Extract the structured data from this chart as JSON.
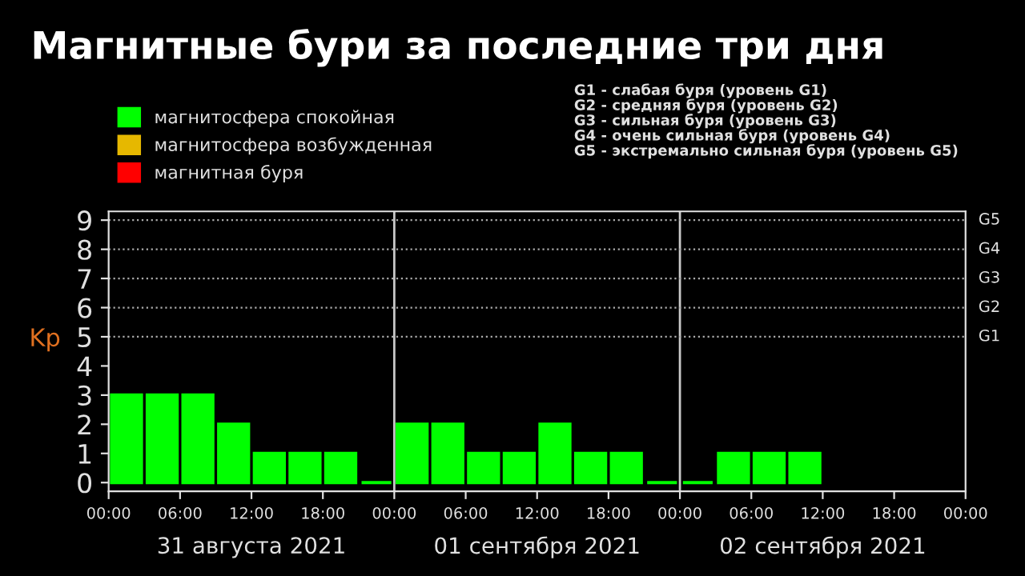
{
  "chart_data": {
    "type": "bar",
    "title": "Магнитные бури за последние три дня",
    "ylabel": "Kp",
    "x": [
      "2021-08-31T01:30",
      "2021-08-31T04:30",
      "2021-08-31T07:30",
      "2021-08-31T10:30",
      "2021-08-31T13:30",
      "2021-08-31T16:30",
      "2021-08-31T19:30",
      "2021-08-31T22:30",
      "2021-09-01T01:30",
      "2021-09-01T04:30",
      "2021-09-01T07:30",
      "2021-09-01T10:30",
      "2021-09-01T13:30",
      "2021-09-01T16:30",
      "2021-09-01T19:30",
      "2021-09-01T22:30",
      "2021-09-02T01:30",
      "2021-09-02T04:30",
      "2021-09-02T07:30",
      "2021-09-02T10:30"
    ],
    "series": [
      {
        "name": "магнитосфера спокойная",
        "color": "#00ff00",
        "values": [
          3,
          3,
          3,
          2,
          1,
          1,
          1,
          0,
          2,
          2,
          1,
          1,
          2,
          1,
          1,
          0,
          0,
          1,
          1,
          1
        ]
      },
      {
        "name": "магнитосфера возбужденная",
        "color": "#e6b800",
        "values": [
          null,
          null,
          null,
          null,
          null,
          null,
          null,
          null,
          null,
          null,
          null,
          null,
          null,
          null,
          null,
          null,
          null,
          null,
          null,
          null
        ]
      },
      {
        "name": "магнитная буря",
        "color": "#ff0000",
        "values": [
          null,
          null,
          null,
          null,
          null,
          null,
          null,
          null,
          null,
          null,
          null,
          null,
          null,
          null,
          null,
          null,
          null,
          null,
          null,
          null
        ]
      }
    ],
    "xlim": [
      "2021-08-31T00:00",
      "2021-09-03T00:00"
    ],
    "xticks": [
      {
        "value": "2021-08-31T00:00",
        "label": "00:00"
      },
      {
        "value": "2021-08-31T06:00",
        "label": "06:00"
      },
      {
        "value": "2021-08-31T12:00",
        "label": "12:00"
      },
      {
        "value": "2021-08-31T18:00",
        "label": "18:00"
      },
      {
        "value": "2021-09-01T00:00",
        "label": "00:00"
      },
      {
        "value": "2021-09-01T06:00",
        "label": "06:00"
      },
      {
        "value": "2021-09-01T12:00",
        "label": "12:00"
      },
      {
        "value": "2021-09-01T18:00",
        "label": "18:00"
      },
      {
        "value": "2021-09-02T00:00",
        "label": "00:00"
      },
      {
        "value": "2021-09-02T06:00",
        "label": "06:00"
      },
      {
        "value": "2021-09-02T12:00",
        "label": "12:00"
      },
      {
        "value": "2021-09-02T18:00",
        "label": "18:00"
      },
      {
        "value": "2021-09-03T00:00",
        "label": "00:00"
      }
    ],
    "ylim": [
      -0.3,
      9.3
    ],
    "yticks": [
      0,
      1,
      2,
      3,
      4,
      5,
      6,
      7,
      8,
      9
    ],
    "ref_lines": [
      {
        "axis": "x",
        "value": "2021-09-01T00:00",
        "color": "#c8c8c8",
        "line_style": "solid"
      },
      {
        "axis": "x",
        "value": "2021-09-02T00:00",
        "color": "#c8c8c8",
        "line_style": "solid"
      },
      {
        "axis": "y",
        "value": 5,
        "label": "G1",
        "color": "#aaaaaa",
        "line_style": "dotted"
      },
      {
        "axis": "y",
        "value": 6,
        "label": "G2",
        "color": "#aaaaaa",
        "line_style": "dotted"
      },
      {
        "axis": "y",
        "value": 7,
        "label": "G3",
        "color": "#aaaaaa",
        "line_style": "dotted"
      },
      {
        "axis": "y",
        "value": 8,
        "label": "G4",
        "color": "#aaaaaa",
        "line_style": "dotted"
      },
      {
        "axis": "y",
        "value": 9,
        "label": "G5",
        "color": "#aaaaaa",
        "line_style": "dotted"
      }
    ],
    "annotations": [
      "31 августа 2021",
      "01 сентября 2021",
      "02 сентября 2021",
      "G1 - слабая буря (уровень G1)\nG2 - средняя буря (уровень G2)\nG3 - сильная буря (уровень G3)\nG4 - очень сильная буря (уровень G4)\nG5 - экстремально сильная буря (уровень G5)"
    ],
    "legend": "top left",
    "grid": false
  }
}
